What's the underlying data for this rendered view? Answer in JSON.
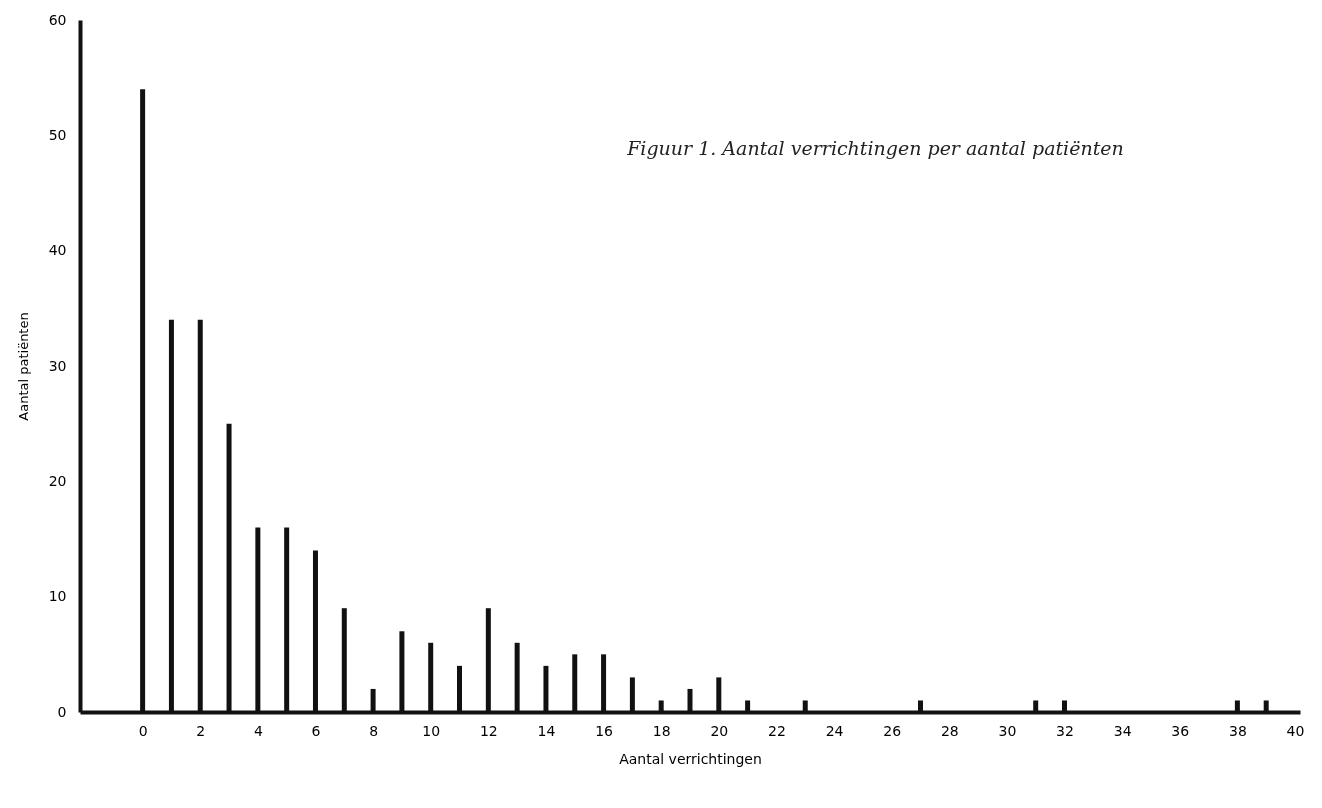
{
  "chart_data": {
    "type": "bar",
    "title": "Figuur 1.    Aantal verrichtingen per aantal patiënten",
    "xlabel": "Aantal verrichtingen",
    "ylabel": "Aantal patiënten",
    "x": [
      0,
      1,
      2,
      3,
      4,
      5,
      6,
      7,
      8,
      9,
      10,
      11,
      12,
      13,
      14,
      15,
      16,
      17,
      18,
      19,
      20,
      21,
      23,
      27,
      31,
      32,
      38,
      39
    ],
    "values": [
      54,
      34,
      34,
      25,
      16,
      16,
      14,
      9,
      2,
      7,
      6,
      4,
      9,
      6,
      4,
      5,
      5,
      3,
      1,
      2,
      3,
      1,
      1,
      1,
      1,
      1,
      1,
      1
    ],
    "color": "#111111",
    "xlim": [
      -2,
      40
    ],
    "xticks": [
      0,
      2,
      4,
      6,
      8,
      10,
      12,
      14,
      16,
      18,
      20,
      22,
      24,
      26,
      28,
      30,
      32,
      34,
      36,
      38,
      40
    ],
    "ylim": [
      0,
      60
    ],
    "yticks": [
      0,
      10,
      20,
      30,
      40,
      50,
      60
    ],
    "grid": false
  }
}
